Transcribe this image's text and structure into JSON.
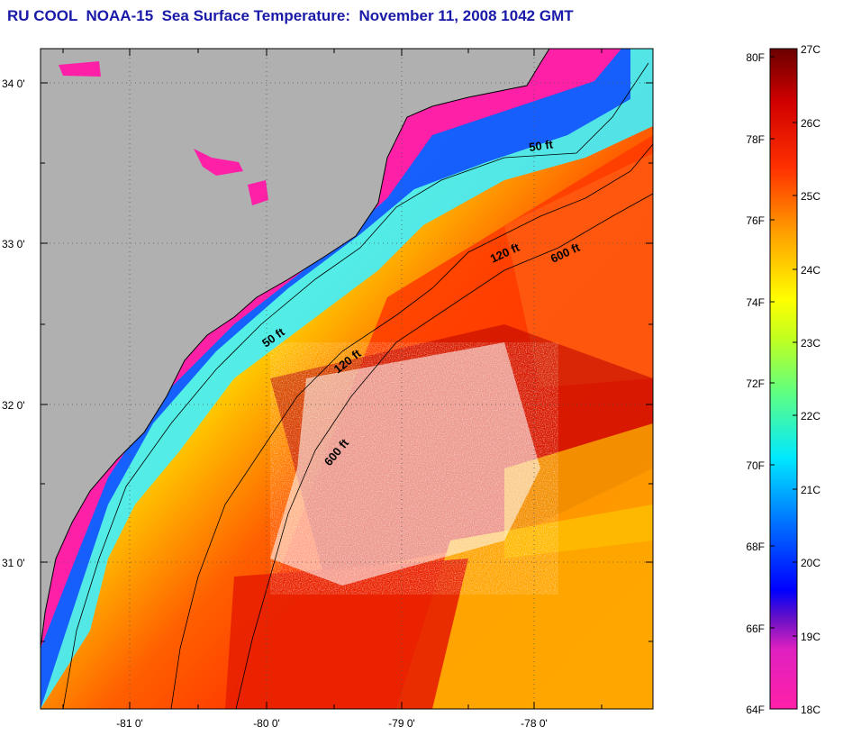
{
  "title": "RU COOL  NOAA-15  Sea Surface Temperature:  November 11, 2008 1042 GMT",
  "map": {
    "latitude_labels": [
      "34 0'",
      "33 0'",
      "32 0'",
      "31 0'"
    ],
    "longitude_labels": [
      "-81 0'",
      "-80 0'",
      "-79 0'",
      "-78 0'"
    ],
    "isobath_labels": [
      "50 ft",
      "120 ft",
      "600 ft",
      "50 ft",
      "120 ft",
      "600 ft"
    ]
  },
  "color_scale": {
    "fahrenheit_labels": [
      "80F",
      "78F",
      "76F",
      "74F",
      "72F",
      "70F",
      "68F",
      "66F",
      "64F"
    ],
    "celsius_labels": [
      "27C",
      "26C",
      "25C",
      "24C",
      "23C",
      "22C",
      "21C",
      "20C",
      "19C",
      "18C"
    ],
    "colors": [
      "#ff1ea0",
      "#c020d0",
      "#4010c8",
      "#0000ff",
      "#0090ff",
      "#00ffff",
      "#80ff60",
      "#ffff00",
      "#ffa000",
      "#ff3000",
      "#d00000",
      "#7a0000"
    ]
  },
  "colors": {
    "land": "#b0b0b0",
    "title": "#1a1aa8"
  }
}
